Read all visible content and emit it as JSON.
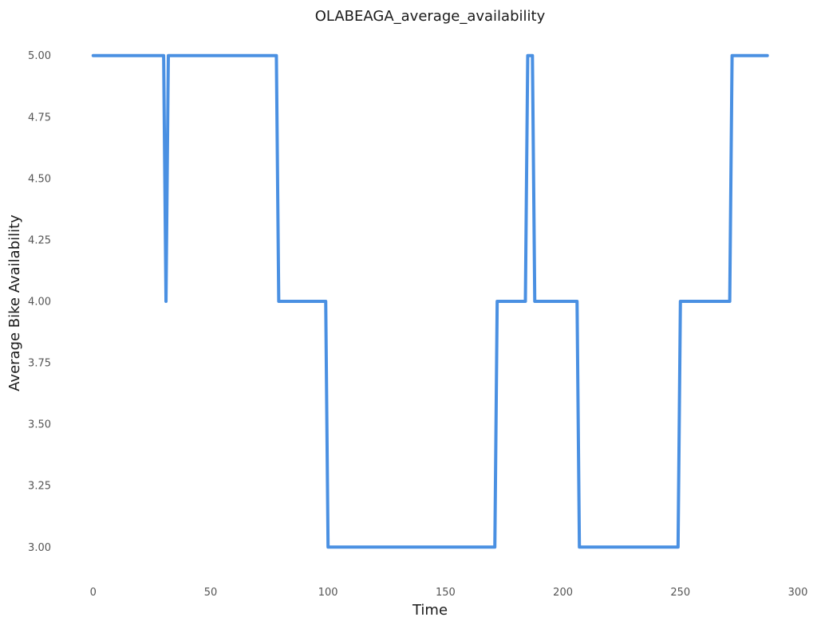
{
  "chart_data": {
    "type": "line",
    "title": "OLABEAGA_average_availability",
    "xlabel": "Time",
    "ylabel": "Average Bike Availability",
    "xlim": [
      -4,
      300
    ],
    "ylim": [
      2.91,
      5.09
    ],
    "x_ticks": [
      0,
      50,
      100,
      150,
      200,
      250,
      300
    ],
    "y_ticks": [
      3.0,
      3.25,
      3.5,
      3.75,
      4.0,
      4.25,
      4.5,
      4.75,
      5.0
    ],
    "grid": false,
    "legend": "none",
    "series": [
      {
        "color": "#4a90e2",
        "points": [
          [
            0,
            5
          ],
          [
            30,
            5
          ],
          [
            31,
            4
          ],
          [
            32,
            5
          ],
          [
            78,
            5
          ],
          [
            79,
            4
          ],
          [
            99,
            4
          ],
          [
            100,
            3
          ],
          [
            171,
            3
          ],
          [
            172,
            4
          ],
          [
            184,
            4
          ],
          [
            185,
            5
          ],
          [
            187,
            5
          ],
          [
            188,
            4
          ],
          [
            206,
            4
          ],
          [
            207,
            3
          ],
          [
            249,
            3
          ],
          [
            250,
            4
          ],
          [
            271,
            4
          ],
          [
            272,
            5
          ],
          [
            287,
            5
          ]
        ]
      }
    ]
  }
}
